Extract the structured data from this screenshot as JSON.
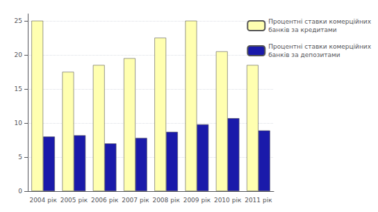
{
  "chart_data": {
    "type": "bar",
    "categories": [
      "2004 рік",
      "2005 рік",
      "2006 рік",
      "2007 рік",
      "2008 рік",
      "2009 рік",
      "2010 рік",
      "2011 рік"
    ],
    "series": [
      {
        "name": "Процентні ставки комерційних\nбанків за кредитами",
        "color": "#FFFFB0",
        "values": [
          25.0,
          17.5,
          18.5,
          19.5,
          22.5,
          25.0,
          20.5,
          18.5
        ]
      },
      {
        "name": "Процентні ставки комерційних\nбанків за депозитами",
        "color": "#1a1aaa",
        "values": [
          8.0,
          8.2,
          7.0,
          7.8,
          8.7,
          9.8,
          10.7,
          8.9
        ]
      }
    ],
    "ylim": [
      0,
      26
    ],
    "yticks": [
      0,
      5,
      10,
      15,
      20,
      25
    ],
    "grid": true,
    "legend": "right"
  }
}
